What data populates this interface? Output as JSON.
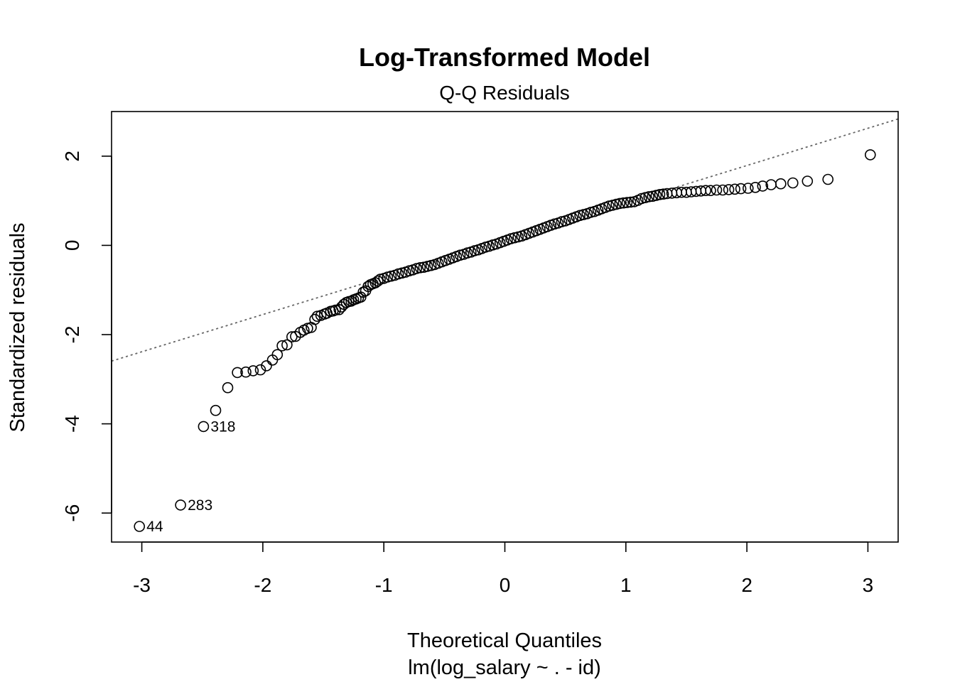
{
  "chart_data": {
    "type": "scatter",
    "title": "Log-Transformed Model",
    "subtitle": "Q-Q Residuals",
    "xlabel": "Theoretical Quantiles",
    "xlabel2": "lm(log_salary ~ . - id)",
    "ylabel": "Standardized residuals",
    "xlim": [
      -3.25,
      3.25
    ],
    "ylim": [
      -6.65,
      3.0
    ],
    "x_ticks": [
      -3,
      -2,
      -1,
      0,
      1,
      2,
      3
    ],
    "y_ticks": [
      -6,
      -4,
      -2,
      0,
      2
    ],
    "reference_line": {
      "slope": 0.835,
      "intercept": 0.12,
      "style": "dotted",
      "color": "#666666"
    },
    "labeled_points": [
      {
        "label": "44",
        "x": -3.02,
        "y": -6.3
      },
      {
        "label": "283",
        "x": -2.68,
        "y": -5.82
      },
      {
        "label": "318",
        "x": -2.49,
        "y": -4.06
      }
    ],
    "points": [
      [
        -3.02,
        -6.3
      ],
      [
        -2.68,
        -5.82
      ],
      [
        -2.49,
        -4.06
      ],
      [
        -2.39,
        -3.7
      ],
      [
        -2.29,
        -3.19
      ],
      [
        -2.21,
        -2.85
      ],
      [
        -2.14,
        -2.84
      ],
      [
        -2.08,
        -2.81
      ],
      [
        -2.02,
        -2.79
      ],
      [
        -1.97,
        -2.7
      ],
      [
        -1.92,
        -2.57
      ],
      [
        -1.88,
        -2.45
      ],
      [
        -1.84,
        -2.25
      ],
      [
        -1.8,
        -2.23
      ],
      [
        -1.76,
        -2.05
      ],
      [
        -1.73,
        -2.04
      ],
      [
        -1.69,
        -1.95
      ],
      [
        -1.66,
        -1.9
      ],
      [
        -1.63,
        -1.86
      ],
      [
        -1.6,
        -1.84
      ],
      [
        -1.57,
        -1.66
      ],
      [
        -1.55,
        -1.59
      ],
      [
        -1.52,
        -1.57
      ],
      [
        -1.49,
        -1.54
      ],
      [
        -1.47,
        -1.52
      ],
      [
        -1.44,
        -1.48
      ],
      [
        -1.42,
        -1.47
      ],
      [
        -1.4,
        -1.45
      ],
      [
        -1.37,
        -1.44
      ],
      [
        -1.35,
        -1.38
      ],
      [
        -1.33,
        -1.32
      ],
      [
        -1.31,
        -1.28
      ],
      [
        -1.29,
        -1.26
      ],
      [
        -1.27,
        -1.25
      ],
      [
        -1.25,
        -1.22
      ],
      [
        -1.23,
        -1.2
      ],
      [
        -1.21,
        -1.18
      ],
      [
        -1.19,
        -1.16
      ],
      [
        -1.17,
        -1.05
      ],
      [
        -1.15,
        -1.02
      ],
      [
        -1.13,
        -0.92
      ],
      [
        -1.11,
        -0.88
      ],
      [
        -1.09,
        -0.86
      ],
      [
        -1.07,
        -0.84
      ],
      [
        -1.05,
        -0.8
      ],
      [
        -1.03,
        -0.76
      ],
      [
        -1.0,
        -0.74
      ],
      [
        -0.97,
        -0.71
      ],
      [
        -0.94,
        -0.69
      ],
      [
        -0.91,
        -0.67
      ],
      [
        -0.88,
        -0.64
      ],
      [
        -0.85,
        -0.62
      ],
      [
        -0.82,
        -0.6
      ],
      [
        -0.79,
        -0.57
      ],
      [
        -0.76,
        -0.55
      ],
      [
        -0.73,
        -0.52
      ],
      [
        -0.7,
        -0.5
      ],
      [
        -0.67,
        -0.49
      ],
      [
        -0.64,
        -0.47
      ],
      [
        -0.61,
        -0.45
      ],
      [
        -0.58,
        -0.43
      ],
      [
        -0.55,
        -0.4
      ],
      [
        -0.52,
        -0.37
      ],
      [
        -0.49,
        -0.34
      ],
      [
        -0.46,
        -0.31
      ],
      [
        -0.43,
        -0.28
      ],
      [
        -0.4,
        -0.25
      ],
      [
        -0.37,
        -0.22
      ],
      [
        -0.34,
        -0.2
      ],
      [
        -0.31,
        -0.17
      ],
      [
        -0.28,
        -0.15
      ],
      [
        -0.25,
        -0.12
      ],
      [
        -0.22,
        -0.1
      ],
      [
        -0.19,
        -0.07
      ],
      [
        -0.16,
        -0.04
      ],
      [
        -0.13,
        -0.02
      ],
      [
        -0.1,
        0.01
      ],
      [
        -0.07,
        0.03
      ],
      [
        -0.04,
        0.06
      ],
      [
        -0.01,
        0.09
      ],
      [
        0.02,
        0.12
      ],
      [
        0.05,
        0.15
      ],
      [
        0.08,
        0.17
      ],
      [
        0.11,
        0.19
      ],
      [
        0.14,
        0.21
      ],
      [
        0.17,
        0.24
      ],
      [
        0.2,
        0.27
      ],
      [
        0.23,
        0.3
      ],
      [
        0.26,
        0.33
      ],
      [
        0.29,
        0.36
      ],
      [
        0.32,
        0.39
      ],
      [
        0.35,
        0.42
      ],
      [
        0.38,
        0.45
      ],
      [
        0.41,
        0.48
      ],
      [
        0.44,
        0.5
      ],
      [
        0.47,
        0.53
      ],
      [
        0.5,
        0.55
      ],
      [
        0.53,
        0.58
      ],
      [
        0.56,
        0.61
      ],
      [
        0.59,
        0.64
      ],
      [
        0.62,
        0.67
      ],
      [
        0.65,
        0.69
      ],
      [
        0.68,
        0.71
      ],
      [
        0.71,
        0.74
      ],
      [
        0.74,
        0.76
      ],
      [
        0.77,
        0.79
      ],
      [
        0.8,
        0.82
      ],
      [
        0.83,
        0.85
      ],
      [
        0.86,
        0.88
      ],
      [
        0.89,
        0.9
      ],
      [
        0.92,
        0.92
      ],
      [
        0.95,
        0.94
      ],
      [
        0.98,
        0.95
      ],
      [
        1.01,
        0.96
      ],
      [
        1.04,
        0.97
      ],
      [
        1.07,
        0.98
      ],
      [
        1.1,
        1.01
      ],
      [
        1.13,
        1.05
      ],
      [
        1.16,
        1.07
      ],
      [
        1.19,
        1.09
      ],
      [
        1.22,
        1.1
      ],
      [
        1.25,
        1.12
      ],
      [
        1.28,
        1.14
      ],
      [
        1.31,
        1.15
      ],
      [
        1.34,
        1.16
      ],
      [
        1.38,
        1.17
      ],
      [
        1.42,
        1.18
      ],
      [
        1.46,
        1.19
      ],
      [
        1.5,
        1.19
      ],
      [
        1.54,
        1.2
      ],
      [
        1.58,
        1.21
      ],
      [
        1.62,
        1.22
      ],
      [
        1.66,
        1.23
      ],
      [
        1.7,
        1.23
      ],
      [
        1.75,
        1.24
      ],
      [
        1.8,
        1.24
      ],
      [
        1.85,
        1.25
      ],
      [
        1.9,
        1.26
      ],
      [
        1.95,
        1.27
      ],
      [
        2.01,
        1.28
      ],
      [
        2.07,
        1.3
      ],
      [
        2.13,
        1.33
      ],
      [
        2.2,
        1.36
      ],
      [
        2.28,
        1.38
      ],
      [
        2.38,
        1.4
      ],
      [
        2.5,
        1.44
      ],
      [
        2.67,
        1.48
      ],
      [
        3.02,
        2.03
      ]
    ]
  }
}
